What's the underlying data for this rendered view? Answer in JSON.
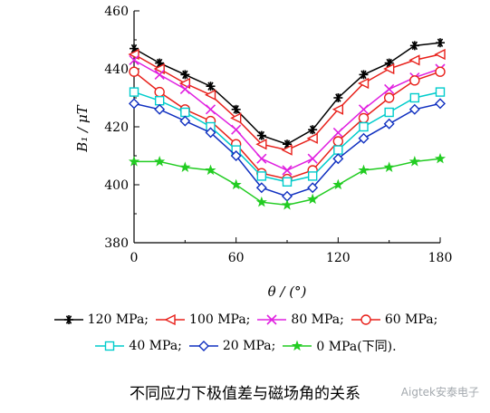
{
  "chart_data": {
    "type": "line",
    "xlabel": "θ / (°)",
    "ylabel": "B₁ / μT",
    "xlim": [
      0,
      180
    ],
    "ylim": [
      380,
      460
    ],
    "xticks": [
      0,
      60,
      120,
      180
    ],
    "yticks": [
      380,
      400,
      420,
      440,
      460
    ],
    "grid": false,
    "legend_position": "bottom",
    "x": [
      0,
      15,
      30,
      45,
      60,
      75,
      90,
      105,
      120,
      135,
      150,
      165,
      180
    ],
    "series": [
      {
        "name": "120 MPa;",
        "color": "#000000",
        "marker": "asterisk",
        "values": [
          447,
          442,
          438,
          434,
          426,
          417,
          414,
          419,
          430,
          438,
          442,
          448,
          449
        ]
      },
      {
        "name": "100 MPa;",
        "color": "#e8201a",
        "marker": "triangle-left",
        "values": [
          445,
          440,
          435,
          431,
          423,
          414,
          412,
          416,
          426,
          435,
          440,
          443,
          445
        ]
      },
      {
        "name": "80 MPa;",
        "color": "#e020e0",
        "marker": "x",
        "values": [
          443,
          438,
          433,
          426,
          419,
          409,
          405,
          409,
          418,
          426,
          433,
          437,
          440
        ]
      },
      {
        "name": "60 MPa;",
        "color": "#e8201a",
        "marker": "circle",
        "values": [
          439,
          432,
          426,
          422,
          414,
          404,
          402,
          405,
          415,
          423,
          430,
          436,
          439
        ]
      },
      {
        "name": "40 MPa;",
        "color": "#00cccc",
        "marker": "square",
        "values": [
          432,
          429,
          425,
          420,
          412,
          403,
          401,
          403,
          412,
          420,
          425,
          430,
          432
        ]
      },
      {
        "name": "20 MPa;",
        "color": "#1030c0",
        "marker": "diamond",
        "values": [
          428,
          426,
          422,
          418,
          410,
          399,
          396,
          399,
          409,
          416,
          421,
          426,
          428
        ]
      },
      {
        "name": "0 MPa(下同).",
        "color": "#22cc22",
        "marker": "star",
        "values": [
          408,
          408,
          406,
          405,
          400,
          394,
          393,
          395,
          400,
          405,
          406,
          408,
          409
        ]
      }
    ]
  },
  "caption": "不同应力下极值差与磁场角的关系",
  "watermark": "Aigtek安泰电子"
}
